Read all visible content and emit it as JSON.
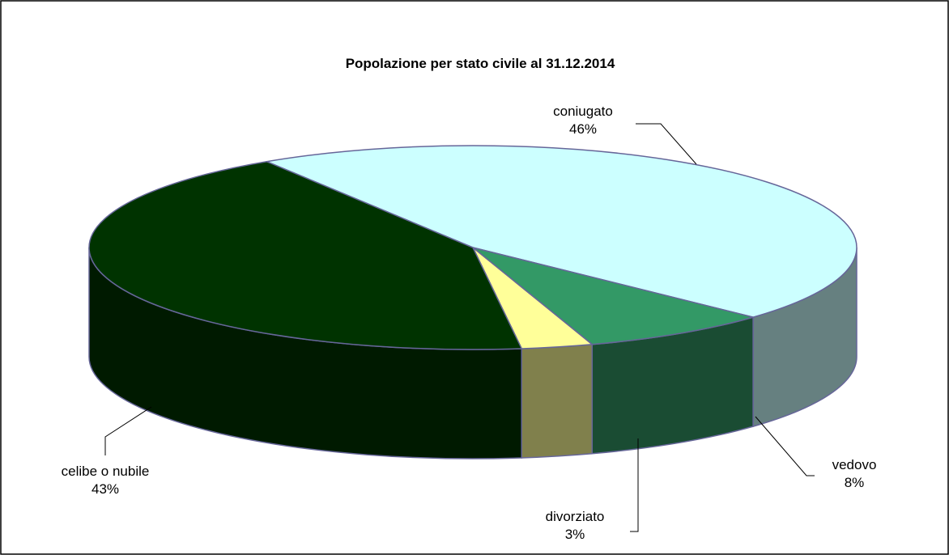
{
  "chart_data": {
    "type": "pie",
    "title": "Popolazione per stato civile al 31.12.2014",
    "slices": [
      {
        "label": "coniugato",
        "value": 46,
        "value_label": "46%",
        "color": "#CCFFFF",
        "side_color": "#668080"
      },
      {
        "label": "vedovo",
        "value": 8,
        "value_label": "8%",
        "color": "#339966",
        "side_color": "#1A4C33"
      },
      {
        "label": "divorziato",
        "value": 3,
        "value_label": "3%",
        "color": "#FFFF99",
        "side_color": "#80804C"
      },
      {
        "label": "celibe o nubile",
        "value": 43,
        "value_label": "43%",
        "color": "#003300",
        "side_color": "#001A00"
      }
    ],
    "style": "3d-exploded-none",
    "legend": "none",
    "border_color": "#000000",
    "edge_color": "#666699"
  }
}
